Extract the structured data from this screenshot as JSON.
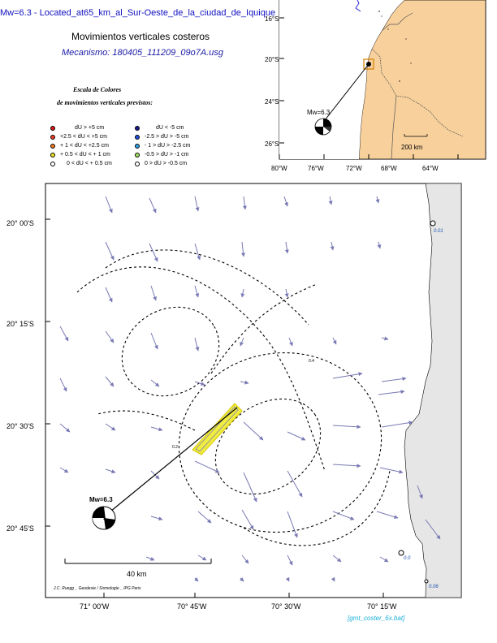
{
  "title": "Mw=6.3 - Located_at65_km_al_Sur-Oeste_de_la_ciudad_de_Iquique",
  "subtitle": "Movimientos verticales costeros",
  "mechanism": "Mecanismo: 180405_111209_09o7A.usg",
  "color_scale": {
    "title_line1": "Escala de Colores",
    "title_line2": "de movimientos verticales previstos:",
    "uplift": [
      {
        "label": "dU > +5  cm",
        "color": "#e01818"
      },
      {
        "label": "+2.5 < dU < +5  cm",
        "color": "#f03c28"
      },
      {
        "label": "+ 1 < dU < +2.5 cm",
        "color": "#f07820"
      },
      {
        "label": "+ 0.5 < dU < + 1  cm",
        "color": "#e8e020"
      },
      {
        "label": "0 < dU < + 0.5 cm",
        "color": "#ffffff"
      }
    ],
    "subsidence": [
      {
        "label": "dU < -5  cm",
        "color": "#1a1a90"
      },
      {
        "label": "-2.5 > dU > -5 cm",
        "color": "#2050e0"
      },
      {
        "label": "- 1 > dU > -2.5 cm",
        "color": "#30a0e8"
      },
      {
        "label": "-0.5 > dU > -1 cm",
        "color": "#a0e060"
      },
      {
        "label": "0 > dU > -0.5 cm",
        "color": "#ffffff"
      }
    ]
  },
  "inset_map": {
    "lat_labels": [
      "16°S",
      "20°S",
      "24°S",
      "26°S"
    ],
    "lon_labels": [
      "80°W",
      "76°W",
      "72°W",
      "68°W",
      "64°W"
    ],
    "scale_label": "200 km",
    "event_label": "Mw=6.3",
    "land_color": "#f8d09c"
  },
  "main_map": {
    "lat_labels": [
      "20° 00'S",
      "20° 15'S",
      "20° 30'S",
      "20° 45'S"
    ],
    "lon_labels": [
      "71° 00'W",
      "70° 45'W",
      "70° 30'W",
      "70° 15'W"
    ],
    "event_label": "Mw=6.3",
    "scale_label": "40 km",
    "station_labels": [
      "0.01",
      "0.0",
      "0.06"
    ],
    "contour_labels": [
      "0.2",
      "0.4"
    ],
    "fault_color": "#f0ec40",
    "land_color": "#e6e6e6",
    "arrow_color": "#7878b4"
  },
  "credit": "J.C. Ruegg _ Geodesie / Sismologie _ IPG Paris",
  "footer": "[gmt_coster_6x.bat]"
}
